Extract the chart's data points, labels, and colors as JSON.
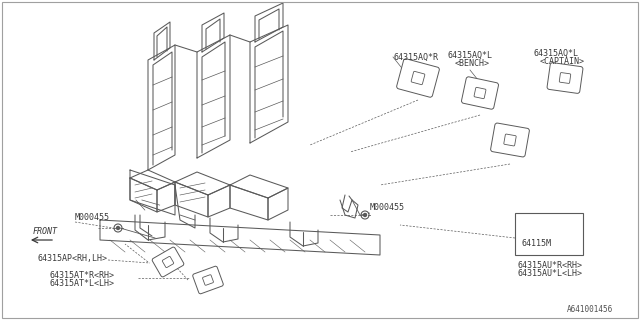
{
  "bg_color": "#ffffff",
  "line_color": "#5a5a5a",
  "text_color": "#3a3a3a",
  "labels": {
    "part_aq_r": "64315AQ*R",
    "part_aq_l_bench": "64315AQ*L",
    "bench_sub": "<BENCH>",
    "part_aq_l_captain": "64315AQ*L",
    "captain_sub": "<CAPTAIN>",
    "bolt_left": "M000455",
    "bolt_right": "M000455",
    "front": "FRONT",
    "part_ap": "64315AP<RH,LH>",
    "part_at_r": "64315AT*R<RH>",
    "part_at_l": "64315AT*L<LH>",
    "part_64115m": "64115M",
    "part_au_r": "64315AU*R<RH>",
    "part_au_l": "64315AU*L<LH>",
    "diagram_id": "A641001456"
  },
  "font_size": 6.0,
  "small_font": 5.5
}
